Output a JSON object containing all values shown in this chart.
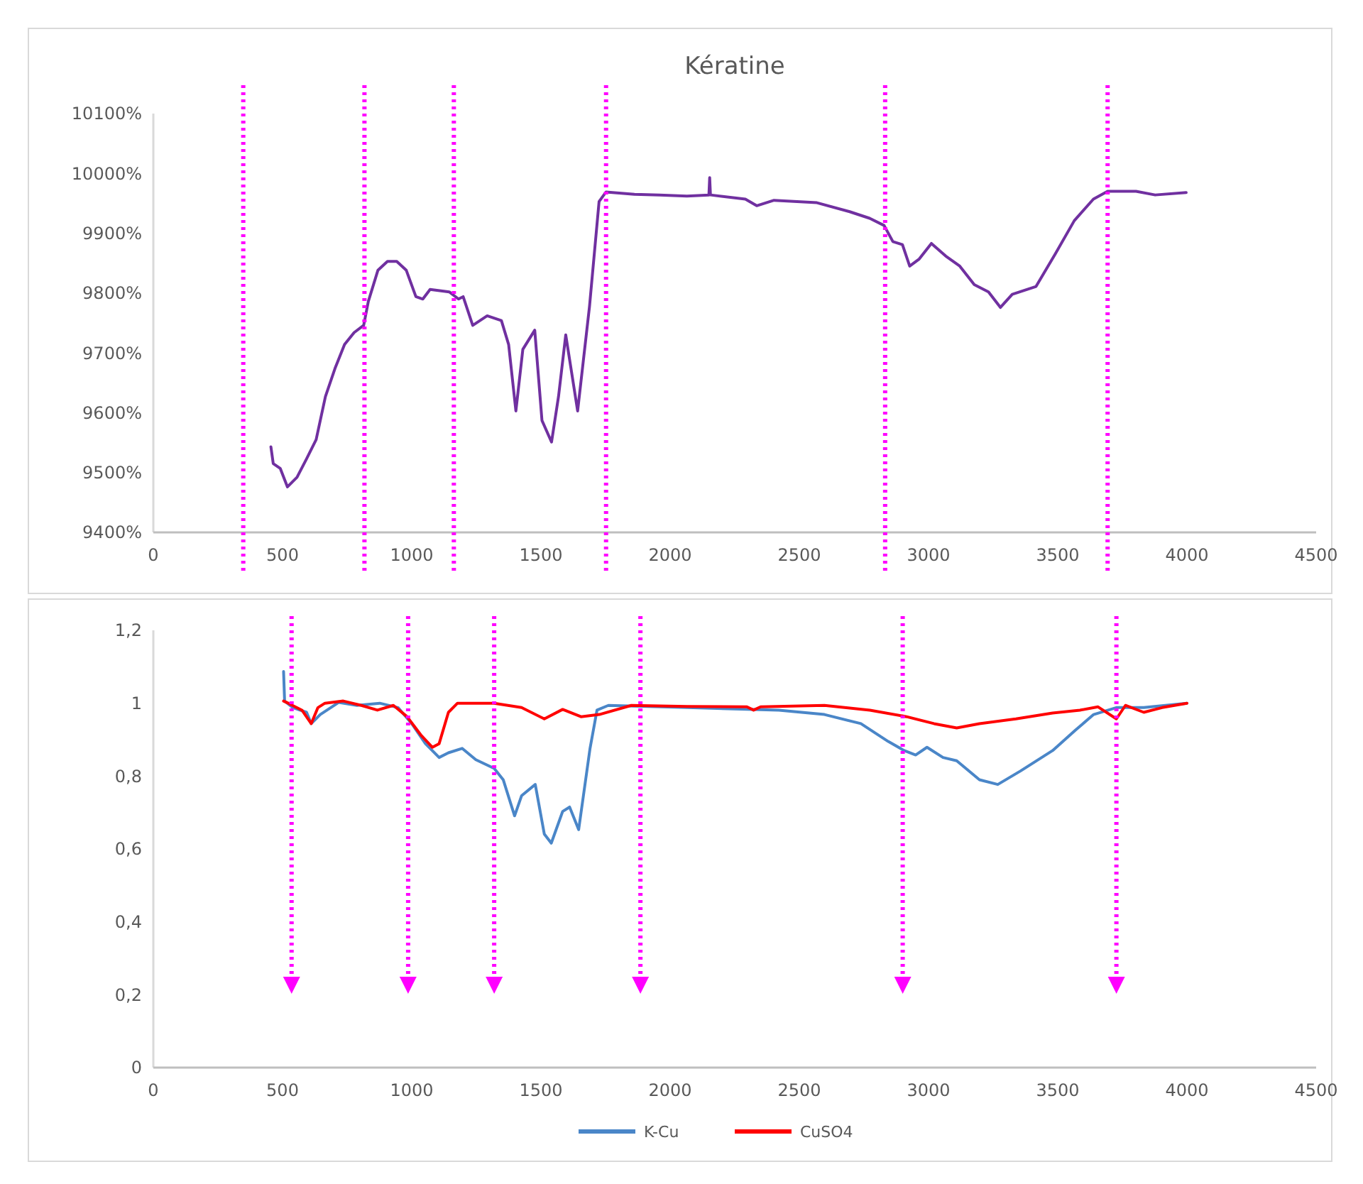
{
  "chart_data": [
    {
      "type": "line",
      "title": "Kératine",
      "xlim": [
        0,
        4500
      ],
      "xticks": [
        0,
        500,
        1000,
        1500,
        2000,
        2500,
        3000,
        3500,
        4000,
        4500
      ],
      "ylim": [
        9400,
        10100
      ],
      "yticks": [
        {
          "value": 9400,
          "label": "9400%"
        },
        {
          "value": 9500,
          "label": "9500%"
        },
        {
          "value": 9600,
          "label": "9600%"
        },
        {
          "value": 9700,
          "label": "9700%"
        },
        {
          "value": 9800,
          "label": "9800%"
        },
        {
          "value": 9900,
          "label": "9900%"
        },
        {
          "value": 10000,
          "label": "10000%"
        },
        {
          "value": 10100,
          "label": "10100%"
        }
      ],
      "grid": false,
      "legend": false,
      "series": [
        {
          "color": "#7030a0",
          "x": [
            455,
            464,
            491,
            519,
            556,
            593,
            630,
            666,
            703,
            740,
            777,
            814,
            832,
            869,
            906,
            942,
            979,
            1016,
            1043,
            1071,
            1145,
            1181,
            1199,
            1236,
            1292,
            1347,
            1375,
            1403,
            1430,
            1476,
            1504,
            1541,
            1568,
            1596,
            1642,
            1688,
            1725,
            1752,
            1862,
            1959,
            2065,
            2150,
            2153,
            2156,
            2291,
            2335,
            2402,
            2568,
            2695,
            2772,
            2828,
            2862,
            2899,
            2927,
            2964,
            3011,
            3066,
            3121,
            3177,
            3232,
            3278,
            3324,
            3416,
            3490,
            3564,
            3638,
            3693,
            3803,
            3877,
            3997
          ],
          "values": [
            9543,
            9515,
            9507,
            9476,
            9492,
            9523,
            9555,
            9627,
            9674,
            9714,
            9734,
            9746,
            9786,
            9838,
            9853,
            9853,
            9838,
            9794,
            9790,
            9806,
            9802,
            9790,
            9794,
            9746,
            9762,
            9754,
            9714,
            9603,
            9706,
            9738,
            9587,
            9551,
            9627,
            9730,
            9603,
            9778,
            9953,
            9969,
            9965,
            9964,
            9962,
            9964,
            9993,
            9964,
            9957,
            9946,
            9955,
            9951,
            9936,
            9925,
            9913,
            9886,
            9881,
            9845,
            9857,
            9883,
            9862,
            9845,
            9814,
            9802,
            9776,
            9798,
            9811,
            9865,
            9921,
            9957,
            9970,
            9970,
            9964,
            9968
          ]
        }
      ],
      "ref_lines": [
        {
          "axis": "x",
          "value": 348,
          "color": "#ff00ff",
          "line_style": "dotted"
        },
        {
          "axis": "x",
          "value": 817,
          "color": "#ff00ff",
          "line_style": "dotted"
        },
        {
          "axis": "x",
          "value": 1163,
          "color": "#ff00ff",
          "line_style": "dotted"
        },
        {
          "axis": "x",
          "value": 1752,
          "color": "#ff00ff",
          "line_style": "dotted"
        },
        {
          "axis": "x",
          "value": 2832,
          "color": "#ff00ff",
          "line_style": "dotted"
        },
        {
          "axis": "x",
          "value": 3693,
          "color": "#ff00ff",
          "line_style": "dotted"
        }
      ]
    },
    {
      "type": "line",
      "xlim": [
        0,
        4500
      ],
      "xticks": [
        0,
        500,
        1000,
        1500,
        2000,
        2500,
        3000,
        3500,
        4000,
        4500
      ],
      "ylim": [
        0,
        1.2
      ],
      "yticks": [
        0,
        {
          "value": 0.2,
          "label": "0,2"
        },
        {
          "value": 0.4,
          "label": "0,4"
        },
        {
          "value": 0.6,
          "label": "0,6"
        },
        {
          "value": 0.8,
          "label": "0,8"
        },
        1,
        {
          "value": 1.2,
          "label": "1,2"
        }
      ],
      "grid": false,
      "legend": "bottom",
      "series": [
        {
          "name": "K-Cu",
          "color": "#4a86c8",
          "x": [
            504,
            508,
            540,
            593,
            611,
            646,
            717,
            788,
            876,
            947,
            1000,
            1053,
            1106,
            1142,
            1195,
            1248,
            1319,
            1354,
            1398,
            1425,
            1478,
            1513,
            1540,
            1584,
            1611,
            1646,
            1690,
            1717,
            1761,
            2067,
            2421,
            2597,
            2738,
            2844,
            2906,
            2950,
            2994,
            3056,
            3109,
            3197,
            3268,
            3356,
            3480,
            3568,
            3639,
            3727,
            3833,
            4000
          ],
          "values": [
            1.087,
            1.006,
            0.988,
            0.975,
            0.944,
            0.969,
            1.002,
            0.994,
            1.0,
            0.988,
            0.944,
            0.889,
            0.851,
            0.864,
            0.876,
            0.845,
            0.821,
            0.79,
            0.691,
            0.746,
            0.777,
            0.641,
            0.616,
            0.703,
            0.715,
            0.653,
            0.876,
            0.981,
            0.994,
            0.988,
            0.981,
            0.969,
            0.944,
            0.895,
            0.87,
            0.858,
            0.879,
            0.851,
            0.842,
            0.79,
            0.777,
            0.814,
            0.87,
            0.926,
            0.969,
            0.988,
            0.988,
            1.0
          ]
        },
        {
          "name": "CuSO4",
          "color": "#ff0000",
          "x": [
            504,
            522,
            575,
            611,
            637,
            664,
            735,
            805,
            867,
            929,
            982,
            1035,
            1080,
            1106,
            1142,
            1177,
            1319,
            1425,
            1513,
            1584,
            1655,
            1726,
            1850,
            2067,
            2297,
            2323,
            2350,
            2597,
            2773,
            2915,
            3021,
            3109,
            3197,
            3338,
            3480,
            3586,
            3656,
            3727,
            3762,
            3833,
            3904,
            4000
          ],
          "values": [
            1.006,
            1.0,
            0.981,
            0.944,
            0.988,
            1.0,
            1.006,
            0.994,
            0.981,
            0.994,
            0.963,
            0.913,
            0.879,
            0.889,
            0.975,
            1.0,
            1.0,
            0.988,
            0.957,
            0.983,
            0.963,
            0.969,
            0.994,
            0.991,
            0.99,
            0.981,
            0.99,
            0.994,
            0.981,
            0.963,
            0.944,
            0.932,
            0.944,
            0.957,
            0.973,
            0.981,
            0.99,
            0.957,
            0.994,
            0.975,
            0.988,
            1.0
          ]
        }
      ],
      "ref_lines": [
        {
          "axis": "x",
          "value": 535,
          "color": "#ff00ff",
          "line_style": "dotted"
        },
        {
          "axis": "x",
          "value": 986,
          "color": "#ff00ff",
          "line_style": "dotted"
        },
        {
          "axis": "x",
          "value": 1319,
          "color": "#ff00ff",
          "line_style": "dotted"
        },
        {
          "axis": "x",
          "value": 1885,
          "color": "#ff00ff",
          "line_style": "dotted"
        },
        {
          "axis": "x",
          "value": 2900,
          "color": "#ff00ff",
          "line_style": "dotted"
        },
        {
          "axis": "x",
          "value": 3727,
          "color": "#ff00ff",
          "line_style": "dotted"
        }
      ]
    }
  ]
}
